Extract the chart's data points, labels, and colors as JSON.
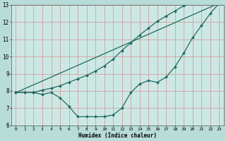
{
  "xlabel": "Humidex (Indice chaleur)",
  "bg_color": "#b8ddd8",
  "plot_bg_color": "#cce8e4",
  "grid_color": "#d4a0a0",
  "line_color": "#1a6b60",
  "xlim": [
    -0.5,
    23.5
  ],
  "ylim": [
    6,
    13
  ],
  "xticks": [
    0,
    1,
    2,
    3,
    4,
    5,
    6,
    7,
    8,
    9,
    10,
    11,
    12,
    13,
    14,
    15,
    16,
    17,
    18,
    19,
    20,
    21,
    22,
    23
  ],
  "yticks": [
    6,
    7,
    8,
    9,
    10,
    11,
    12,
    13
  ],
  "line1_x": [
    0,
    1,
    2,
    3,
    4,
    5,
    6,
    7,
    8,
    9,
    10,
    11,
    12,
    13,
    14,
    15,
    16,
    17,
    18,
    19,
    20,
    21,
    22,
    23
  ],
  "line1_y": [
    7.9,
    7.9,
    7.9,
    7.8,
    7.9,
    7.6,
    7.1,
    6.5,
    6.5,
    6.5,
    6.5,
    6.6,
    7.0,
    7.9,
    8.4,
    8.6,
    8.5,
    8.8,
    9.4,
    10.2,
    11.1,
    11.8,
    12.5,
    13.1
  ],
  "line2_x": [
    0,
    1,
    2,
    3,
    4,
    5,
    6,
    7,
    8,
    9,
    10,
    11,
    12,
    13,
    14,
    15,
    16,
    17,
    18,
    19,
    20,
    21,
    22,
    23
  ],
  "line2_y": [
    7.9,
    7.9,
    7.9,
    8.05,
    8.15,
    8.3,
    8.5,
    8.7,
    8.9,
    9.15,
    9.45,
    9.85,
    10.35,
    10.8,
    11.25,
    11.65,
    12.05,
    12.35,
    12.65,
    12.95,
    13.1,
    null,
    null,
    null
  ],
  "line3_x": [
    0,
    23
  ],
  "line3_y": [
    7.9,
    13.1
  ]
}
